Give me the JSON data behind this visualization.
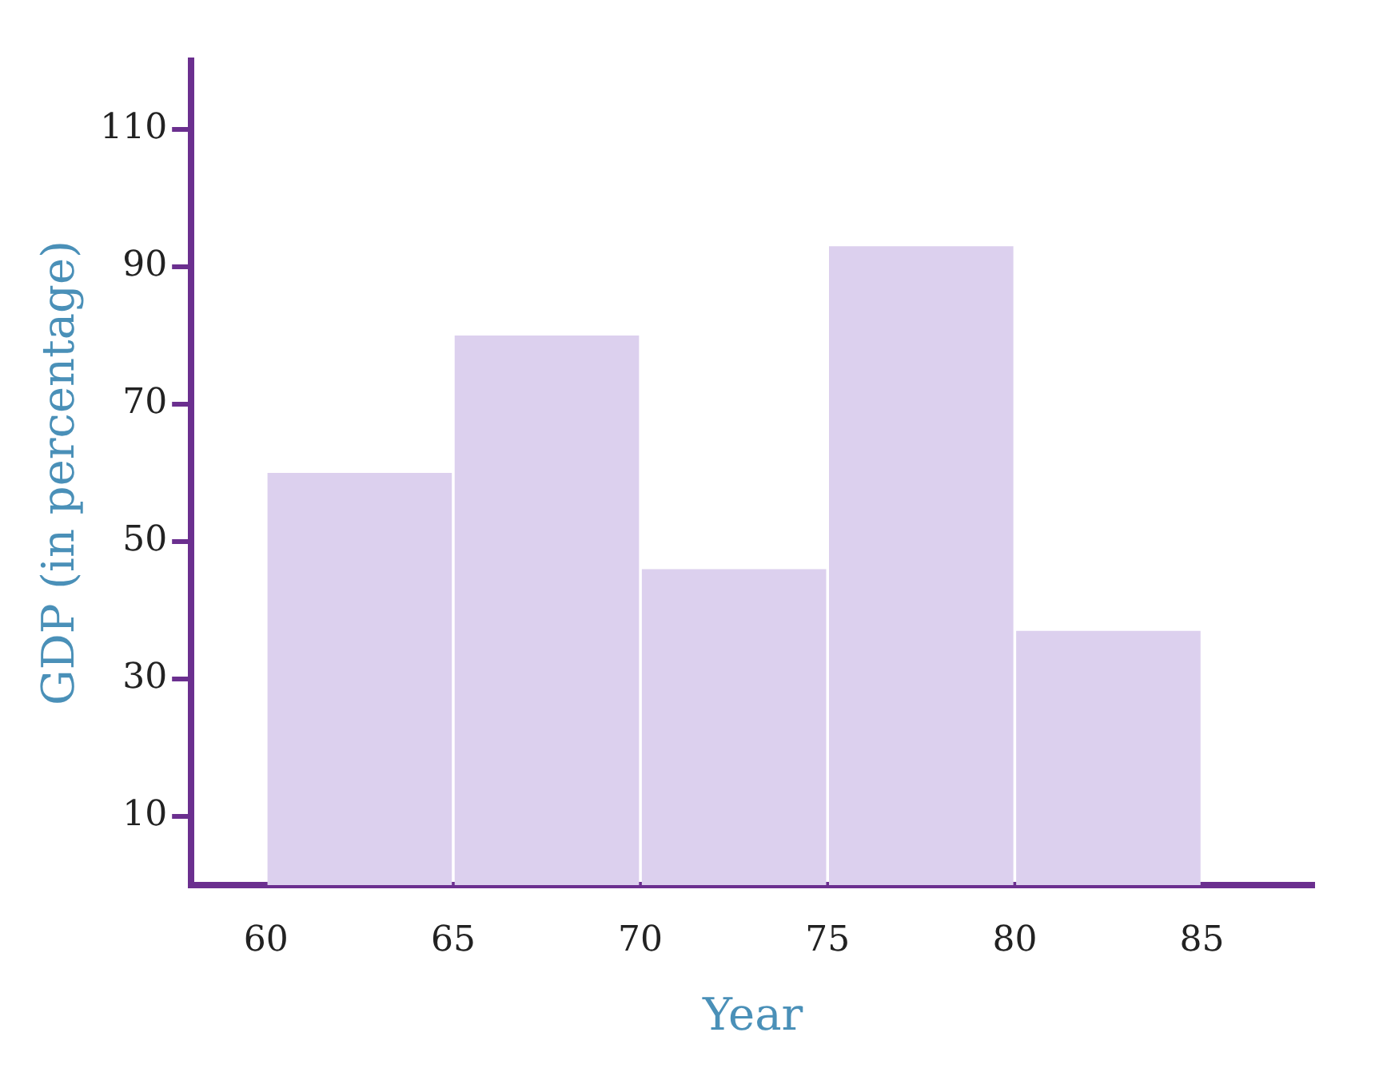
{
  "chart_data": {
    "type": "histogram",
    "xlabel": "Year",
    "ylabel": "GDP (in percentage)",
    "bins": [
      60,
      65,
      70,
      75,
      80,
      85
    ],
    "values": [
      60,
      80,
      46,
      93,
      37
    ],
    "color": "#dcd0ee",
    "xlim": [
      58,
      88
    ],
    "xticks": [
      60,
      65,
      70,
      75,
      80,
      85
    ],
    "ylim": [
      0,
      120
    ],
    "yticks": [
      10,
      30,
      50,
      70,
      90,
      110
    ],
    "grid": false,
    "legend": false
  }
}
